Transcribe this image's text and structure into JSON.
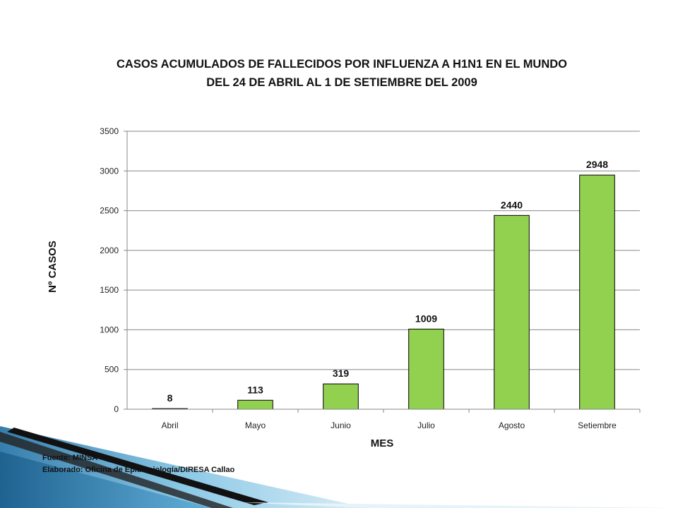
{
  "chart_data": {
    "type": "bar",
    "title": [
      "CASOS ACUMULADOS DE FALLECIDOS POR INFLUENZA A H1N1 EN EL MUNDO",
      "DEL 24 DE ABRIL AL 1 DE SETIEMBRE DEL 2009"
    ],
    "xlabel": "MES",
    "ylabel": "Nº CASOS",
    "categories": [
      "Abril",
      "Mayo",
      "Junio",
      "Julio",
      "Agosto",
      "Setiembre"
    ],
    "values": [
      8,
      113,
      319,
      1009,
      2440,
      2948
    ],
    "data_labels": [
      "8",
      "113",
      "319",
      "1009",
      "2440",
      "2948"
    ],
    "ylim": [
      0,
      3500
    ],
    "yticks": [
      0,
      500,
      1000,
      1500,
      2000,
      2500,
      3000,
      3500
    ],
    "ytick_labels": [
      "0",
      "500",
      "1000",
      "1500",
      "2000",
      "2500",
      "3000",
      "3500"
    ],
    "grid": true,
    "legend": "none",
    "colors": {
      "bar_fill": "#92D050",
      "bar_stroke": "#000000",
      "gridline": "#878787"
    }
  },
  "footer": {
    "source": "Fuente: MINSA",
    "prepared_by": "Elaborado: Oficina de Epidemiología/DIRESA Callao"
  }
}
